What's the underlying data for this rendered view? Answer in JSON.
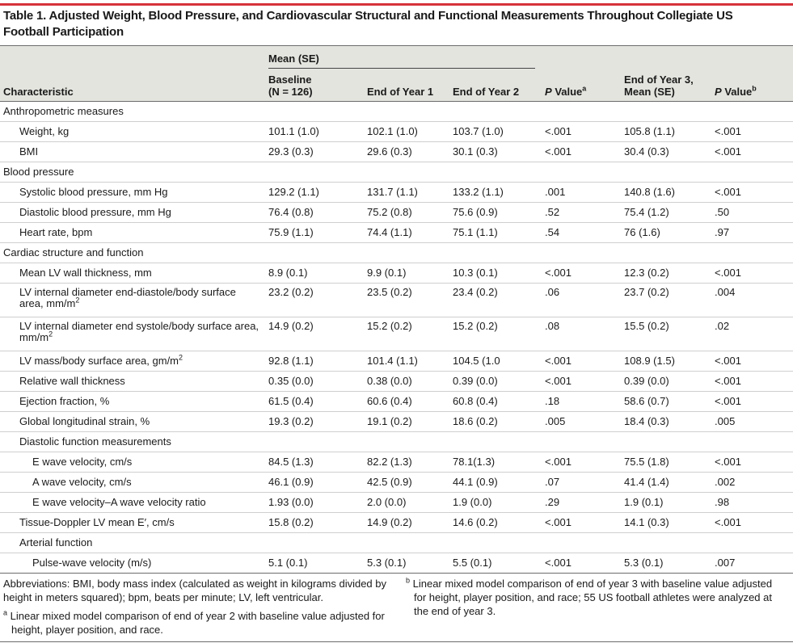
{
  "title": "Table 1. Adjusted Weight, Blood Pressure, and Cardiovascular Structural and Functional Measurements Throughout Collegiate US Football Participation",
  "header": {
    "group": "Mean (SE)",
    "characteristic": "Characteristic",
    "baseline_l1": "Baseline",
    "baseline_l2": "(N = 126)",
    "year1": "End of Year 1",
    "year2": "End of Year 2",
    "pvalue_a": "P",
    "pvalue_a_rest": " Value",
    "pvalue_a_sup": "a",
    "year3_l1": "End of Year 3,",
    "year3_l2": "Mean (SE)",
    "pvalue_b": "P",
    "pvalue_b_rest": " Value",
    "pvalue_b_sup": "b"
  },
  "rows": [
    {
      "label": "Anthropometric measures",
      "level": 0
    },
    {
      "label": "Weight, kg",
      "level": 1,
      "v": [
        "101.1 (1.0)",
        "102.1 (1.0)",
        "103.7 (1.0)",
        "<.001",
        "105.8 (1.1)",
        "<.001"
      ]
    },
    {
      "label": "BMI",
      "level": 1,
      "v": [
        "29.3 (0.3)",
        "29.6 (0.3)",
        "30.1 (0.3)",
        "<.001",
        "30.4 (0.3)",
        "<.001"
      ]
    },
    {
      "label": "Blood pressure",
      "level": 0
    },
    {
      "label": "Systolic blood pressure, mm Hg",
      "level": 1,
      "v": [
        "129.2 (1.1)",
        "131.7 (1.1)",
        "133.2 (1.1)",
        ".001",
        "140.8 (1.6)",
        "<.001"
      ]
    },
    {
      "label": "Diastolic blood pressure, mm Hg",
      "level": 1,
      "v": [
        "76.4 (0.8)",
        "75.2 (0.8)",
        "75.6 (0.9)",
        ".52",
        "75.4 (1.2)",
        ".50"
      ]
    },
    {
      "label": "Heart rate, bpm",
      "level": 1,
      "v": [
        "75.9 (1.1)",
        "74.4 (1.1)",
        "75.1 (1.1)",
        ".54",
        "76 (1.6)",
        ".97"
      ]
    },
    {
      "label": "Cardiac structure and function",
      "level": 0
    },
    {
      "label": "Mean LV wall thickness, mm",
      "level": 1,
      "v": [
        "8.9 (0.1)",
        "9.9 (0.1)",
        "10.3 (0.1)",
        "<.001",
        "12.3 (0.2)",
        "<.001"
      ]
    },
    {
      "label": "LV internal diameter end-diastole/body surface area, mm/m",
      "sup": "2",
      "level": 1,
      "tall": true,
      "v": [
        "23.2 (0.2)",
        "23.5 (0.2)",
        "23.4 (0.2)",
        ".06",
        "23.7 (0.2)",
        ".004"
      ]
    },
    {
      "label": "LV internal diameter end systole/body surface area, mm/m",
      "sup": "2",
      "level": 1,
      "tall": true,
      "v": [
        "14.9 (0.2)",
        "15.2 (0.2)",
        "15.2 (0.2)",
        ".08",
        "15.5 (0.2)",
        ".02"
      ]
    },
    {
      "label": "LV mass/body surface area, gm/m",
      "sup": "2",
      "level": 1,
      "v": [
        "92.8 (1.1)",
        "101.4 (1.1)",
        "104.5 (1.0",
        "<.001",
        "108.9 (1.5)",
        "<.001"
      ]
    },
    {
      "label": "Relative wall thickness",
      "level": 1,
      "v": [
        "0.35 (0.0)",
        "0.38 (0.0)",
        "0.39 (0.0)",
        "<.001",
        "0.39 (0.0)",
        "<.001"
      ]
    },
    {
      "label": "Ejection fraction, %",
      "level": 1,
      "v": [
        "61.5 (0.4)",
        "60.6 (0.4)",
        "60.8 (0.4)",
        ".18",
        "58.6 (0.7)",
        "<.001"
      ]
    },
    {
      "label": "Global longitudinal strain, %",
      "level": 1,
      "v": [
        "19.3 (0.2)",
        "19.1 (0.2)",
        "18.6 (0.2)",
        ".005",
        "18.4 (0.3)",
        ".005"
      ]
    },
    {
      "label": "Diastolic function measurements",
      "level": 1
    },
    {
      "label": "E wave velocity, cm/s",
      "level": 2,
      "v": [
        "84.5 (1.3)",
        "82.2 (1.3)",
        "78.1(1.3)",
        "<.001",
        "75.5 (1.8)",
        "<.001"
      ]
    },
    {
      "label": "A wave velocity, cm/s",
      "level": 2,
      "v": [
        "46.1 (0.9)",
        "42.5 (0.9)",
        "44.1 (0.9)",
        ".07",
        "41.4 (1.4)",
        ".002"
      ]
    },
    {
      "label": "E wave velocity–A wave velocity ratio",
      "level": 2,
      "v": [
        "1.93 (0.0)",
        "2.0 (0.0)",
        "1.9 (0.0)",
        ".29",
        "1.9 (0.1)",
        ".98"
      ]
    },
    {
      "label": "Tissue-Doppler LV mean E′, cm/s",
      "level": 1,
      "v": [
        "15.8 (0.2)",
        "14.9 (0.2)",
        "14.6 (0.2)",
        "<.001",
        "14.1 (0.3)",
        "<.001"
      ]
    },
    {
      "label": "Arterial function",
      "level": 1
    },
    {
      "label": "Pulse-wave velocity (m/s)",
      "level": 2,
      "v": [
        "5.1 (0.1)",
        "5.3 (0.1)",
        "5.5 (0.1)",
        "<.001",
        "5.3 (0.1)",
        ".007"
      ]
    }
  ],
  "notes": {
    "abbrev": "Abbreviations: BMI, body mass index (calculated as weight in kilograms divided by height in meters squared); bpm, beats per minute; LV, left ventricular.",
    "a_mark": "a",
    "a_text": " Linear mixed model comparison of end of year 2 with baseline value adjusted for height, player position, and race.",
    "b_mark": "b",
    "b_text": " Linear mixed model comparison of end of year 3 with baseline value adjusted for height, player position, and race; 55 US football athletes were analyzed at the end of year 3."
  },
  "colors": {
    "accent": "#d6323a",
    "header_bg": "#e4e4df"
  }
}
